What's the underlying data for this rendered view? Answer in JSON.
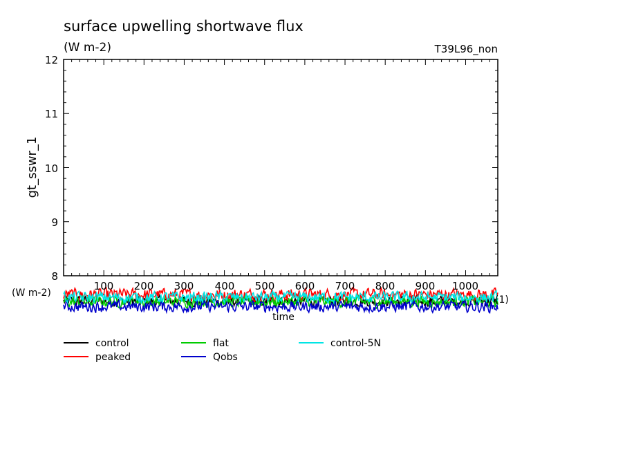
{
  "chart_data": {
    "type": "line",
    "title": "surface upwelling shortwave flux",
    "units": "(W m-2)",
    "run_label": "T39L96_non",
    "ylabel": "gt_sswr_1",
    "ylim": [
      8,
      12
    ],
    "y_ticks": [
      "8",
      "9",
      "10",
      "11",
      "12"
    ],
    "xlim": [
      0,
      1080
    ],
    "x_ticks": [
      "100",
      "200",
      "300",
      "400",
      "500",
      "600",
      "700",
      "800",
      "900",
      "1000"
    ],
    "x_unit_left": "(W m-2)",
    "x_unit_right": "(1)",
    "xlabel": "time",
    "series": [
      {
        "name": "control",
        "color": "#000000",
        "base": 7.53,
        "amp": 0.085
      },
      {
        "name": "peaked",
        "color": "#ff0000",
        "base": 7.65,
        "amp": 0.1
      },
      {
        "name": "flat",
        "color": "#00cc00",
        "base": 7.52,
        "amp": 0.09
      },
      {
        "name": "Qobs",
        "color": "#0000cc",
        "base": 7.43,
        "amp": 0.09
      },
      {
        "name": "control-5N",
        "color": "#00e5e5",
        "base": 7.6,
        "amp": 0.09
      }
    ]
  }
}
